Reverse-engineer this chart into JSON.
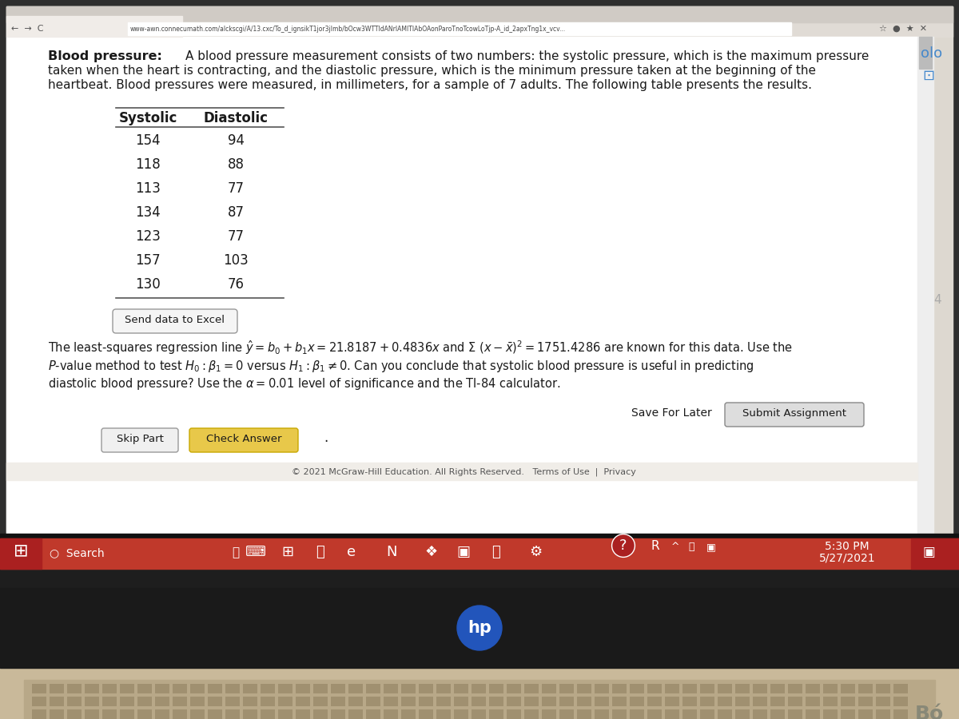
{
  "laptop_bg": "#c9b99a",
  "screen_outer_bg": "#2a2a2a",
  "screen_inner_bg": "#e8e4df",
  "content_bg": "#f5f3f0",
  "white_bg": "#ffffff",
  "url_text": "www-awn.connecumath.com/alckscgi/A/13.cxc/To_d_ignsikT1jor3jImb/bOcw3WTTIdANrIAMITIAbOAonParoTnoTcowLoTjp-A_id_2apxTng1x_vcv...",
  "col_headers": [
    "Systolic",
    "Diastolic"
  ],
  "data_rows": [
    [
      154,
      94
    ],
    [
      118,
      88
    ],
    [
      113,
      77
    ],
    [
      134,
      87
    ],
    [
      123,
      77
    ],
    [
      157,
      103
    ],
    [
      130,
      76
    ]
  ],
  "send_excel_btn": "Send data to Excel",
  "save_btn": "Save For Later",
  "submit_btn": "Submit Assignment",
  "skip_btn": "Skip Part",
  "check_btn": "Check Answer",
  "footer": "© 2021 McGraw-Hill Education. All Rights Reserved.   Terms of Use  |  Privacy",
  "taskbar_time": "5:30 PM",
  "taskbar_date": "5/27/2021",
  "taskbar_red": "#c0392b",
  "taskbar_dark": "#1a1a1a",
  "scroll_gray": "#cccccc",
  "check_btn_color": "#e8c84a",
  "submit_btn_color": "#dddddd"
}
